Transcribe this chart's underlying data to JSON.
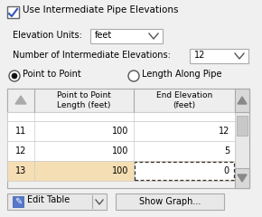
{
  "title": "Use Intermediate Pipe Elevations",
  "checkbox_checked": true,
  "elevation_units_label": "Elevation Units:",
  "elevation_units_value": "feet",
  "num_elevations_label": "Number of Intermediate Elevations:",
  "num_elevations_value": "12",
  "radio_option1": "Point to Point",
  "radio_option2": "Length Along Pipe",
  "radio_selected": 0,
  "col_header1": "Point to Point\nLength (feet)",
  "col_header2": "End Elevation\n(feet)",
  "table_rows": [
    [
      "11",
      "100",
      "12"
    ],
    [
      "12",
      "100",
      "5"
    ],
    [
      "13",
      "100",
      "0"
    ]
  ],
  "highlighted_row": 2,
  "btn1_label": "Edit Table",
  "btn2_label": "Show Graph...",
  "bg_color": "#f0f0f0",
  "table_bg": "#ffffff",
  "highlight_bg": "#f5deb3",
  "header_bg": "#eeeeee",
  "border_color": "#aaaaaa",
  "scrollbar_bg": "#c8c8c8",
  "scrollbar_track": "#e8e8e8"
}
